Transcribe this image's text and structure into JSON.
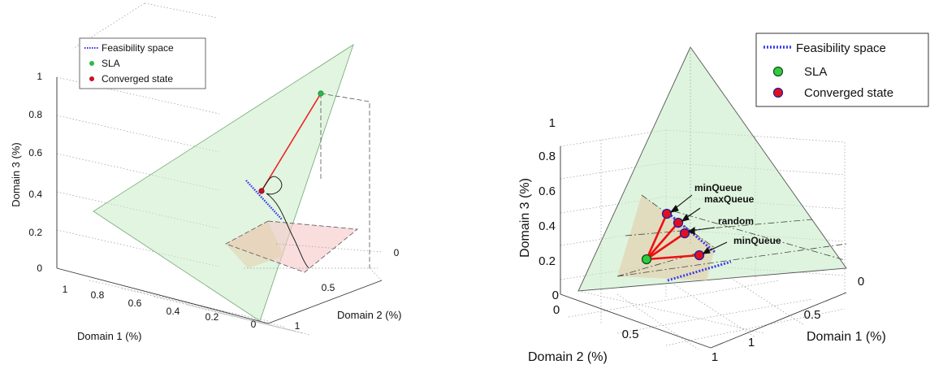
{
  "chart_data": [
    {
      "type": "scatter",
      "legend": {
        "placement": "top-left",
        "entries": [
          "Feasibility space",
          "SLA",
          "Converged state"
        ]
      },
      "axes": {
        "x": {
          "label": "Domain 1 (%)",
          "ticks": [
            "1",
            "0.8",
            "0.6",
            "0.4",
            "0.2",
            "0"
          ]
        },
        "y": {
          "label": "Domain 2 (%)",
          "ticks": [
            "0",
            "0.5",
            "1"
          ]
        },
        "z": {
          "label": "Domain 3 (%)",
          "ticks": [
            "0",
            "0.2",
            "0.4",
            "0.6",
            "0.8",
            "1"
          ]
        }
      },
      "points": {
        "sla": {
          "d1": 0.1,
          "d2": 0.1,
          "d3": 0.8
        },
        "converged": {
          "d1": 0.3,
          "d2": 0.3,
          "d3": 0.4
        }
      },
      "feasibility_space": {
        "from": {
          "d1": 0.35,
          "d2": 0.25,
          "d3": 0.4
        },
        "to": {
          "d1": 0.25,
          "d2": 0.35,
          "d3": 0.4
        }
      },
      "colors": {
        "sla": "#2db84a",
        "converged": "#cc1020",
        "feasibility": "#3030ee",
        "path": "#ee2020",
        "plane": "#c8ecc8",
        "sla_plane": "#f6c8c8"
      }
    },
    {
      "type": "scatter",
      "legend": {
        "placement": "top-right",
        "entries": [
          "Feasibility space",
          "SLA",
          "Converged state"
        ]
      },
      "axes": {
        "x": {
          "label": "Domain 1 (%)",
          "ticks": [
            "0",
            "0.5",
            "1"
          ]
        },
        "y": {
          "label": "Domain 2 (%)",
          "ticks": [
            "0",
            "0.5",
            "1"
          ]
        },
        "z": {
          "label": "Domain 3 (%)",
          "ticks": [
            "0",
            "0.2",
            "0.4",
            "0.6",
            "0.8",
            "1"
          ]
        }
      },
      "sla": {
        "d1": 0.55,
        "d2": 0.25,
        "d3": 0.2
      },
      "converged_states": [
        {
          "label": "minQueue",
          "d1": 0.3,
          "d2": 0.2,
          "d3": 0.48
        },
        {
          "label": "maxQueue",
          "d1": 0.34,
          "d2": 0.2,
          "d3": 0.44
        },
        {
          "label": "random",
          "d1": 0.38,
          "d2": 0.2,
          "d3": 0.37
        },
        {
          "label": "minQueue",
          "d1": 0.45,
          "d2": 0.2,
          "d3": 0.23
        }
      ],
      "colors": {
        "sla": "#2ecc40",
        "converged": "#e01020",
        "converged_edge": "#2020a0",
        "feasibility": "#3a3aee",
        "path": "#ee1010",
        "plane": "#c8ecc8"
      }
    }
  ]
}
